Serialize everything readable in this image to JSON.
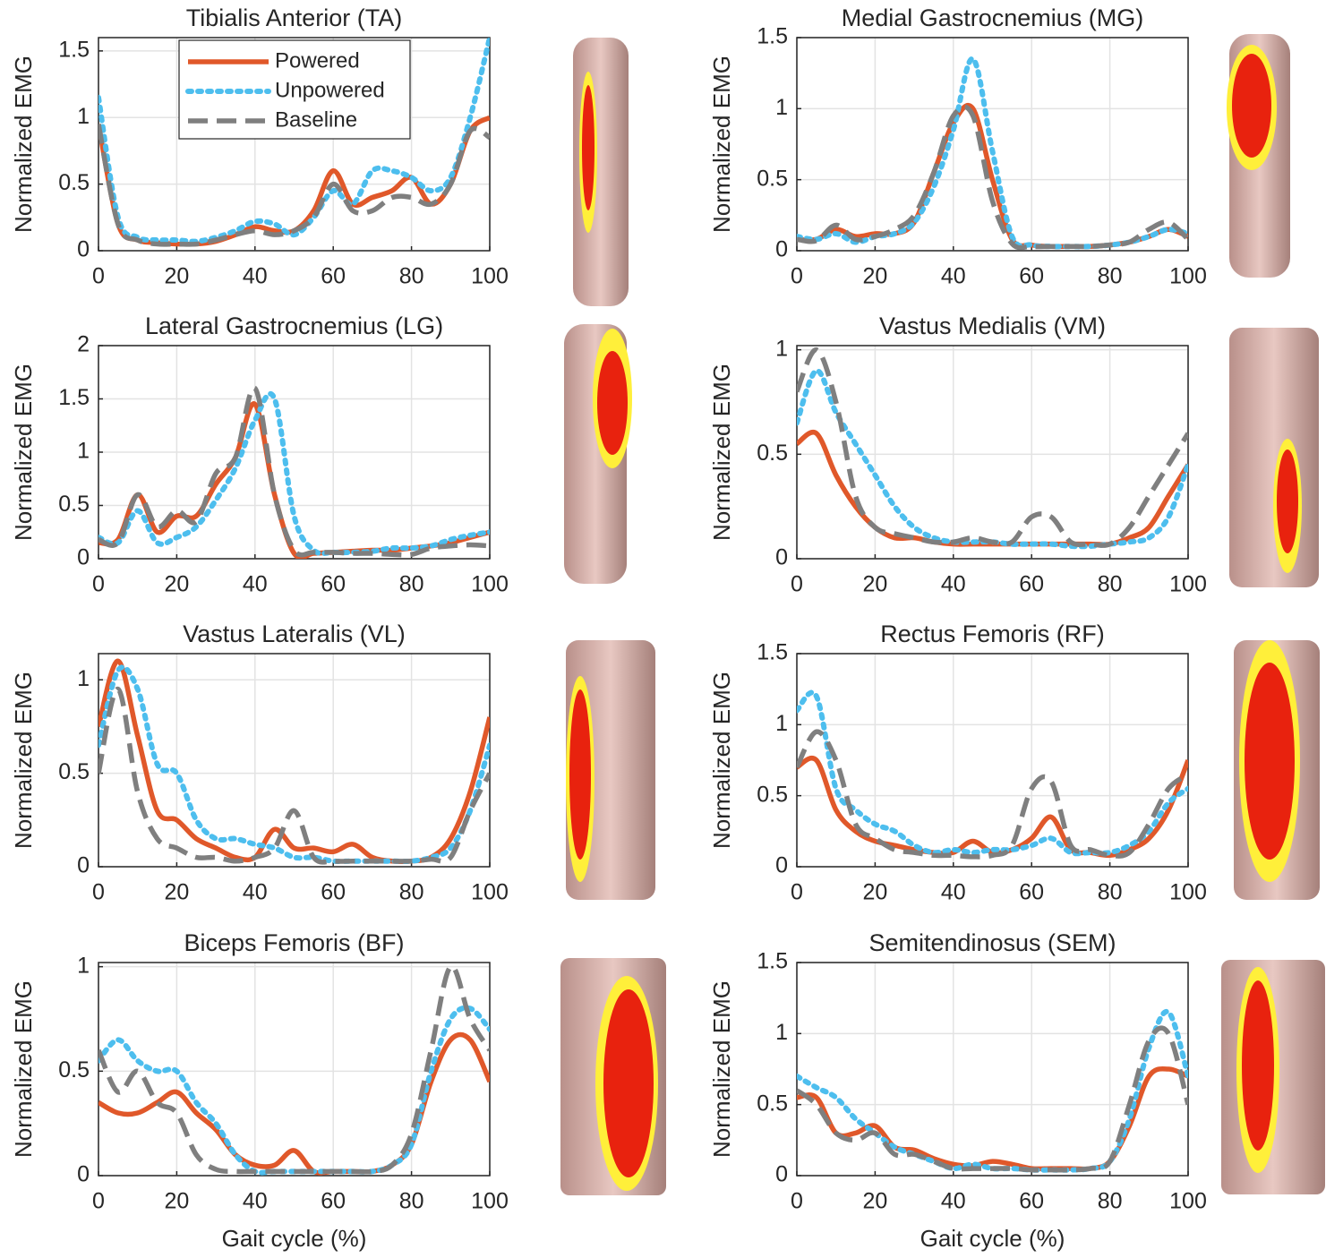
{
  "chart_data": [
    {
      "type": "line",
      "title": "Tibialis Anterior (TA)",
      "ylabel": "Normalized EMG",
      "legend": "upper left",
      "grid": true,
      "x": [
        0,
        5,
        10,
        15,
        20,
        25,
        30,
        35,
        40,
        45,
        50,
        55,
        60,
        65,
        70,
        75,
        80,
        85,
        90,
        95,
        100
      ],
      "xlim": [
        0,
        100
      ],
      "xticks": [
        0,
        20,
        40,
        60,
        80,
        100
      ],
      "ylim": [
        0,
        1.6
      ],
      "yticks": [
        0,
        0.5,
        1,
        1.5
      ],
      "series": [
        {
          "name": "Powered",
          "color": "#e0582a",
          "style": "solid",
          "values": [
            0.95,
            0.2,
            0.08,
            0.06,
            0.05,
            0.05,
            0.07,
            0.12,
            0.18,
            0.15,
            0.15,
            0.3,
            0.6,
            0.35,
            0.4,
            0.45,
            0.55,
            0.35,
            0.5,
            0.9,
            1.0
          ]
        },
        {
          "name": "Unpowered",
          "color": "#4dbeee",
          "style": "dotted",
          "values": [
            1.15,
            0.25,
            0.1,
            0.08,
            0.08,
            0.07,
            0.1,
            0.15,
            0.22,
            0.2,
            0.12,
            0.25,
            0.45,
            0.35,
            0.6,
            0.6,
            0.55,
            0.45,
            0.55,
            1.0,
            1.6
          ]
        },
        {
          "name": "Baseline",
          "color": "#7f7f7f",
          "style": "dashed",
          "values": [
            0.95,
            0.2,
            0.08,
            0.05,
            0.05,
            0.05,
            0.08,
            0.12,
            0.15,
            0.12,
            0.15,
            0.25,
            0.5,
            0.3,
            0.3,
            0.4,
            0.4,
            0.35,
            0.5,
            0.9,
            0.85
          ]
        }
      ]
    },
    {
      "type": "line",
      "title": "Medial Gastrocnemius (MG)",
      "ylabel": "Normalized EMG",
      "grid": true,
      "x": [
        0,
        5,
        10,
        15,
        20,
        25,
        30,
        35,
        40,
        45,
        50,
        55,
        60,
        65,
        70,
        75,
        80,
        85,
        90,
        95,
        100
      ],
      "xlim": [
        0,
        100
      ],
      "xticks": [
        0,
        20,
        40,
        60,
        80,
        100
      ],
      "ylim": [
        0,
        1.5
      ],
      "yticks": [
        0,
        0.5,
        1,
        1.5
      ],
      "series": [
        {
          "color": "#e0582a",
          "style": "solid",
          "values": [
            0.08,
            0.08,
            0.15,
            0.1,
            0.12,
            0.12,
            0.2,
            0.55,
            0.9,
            1.0,
            0.5,
            0.08,
            0.04,
            0.03,
            0.03,
            0.03,
            0.04,
            0.06,
            0.1,
            0.15,
            0.1
          ]
        },
        {
          "color": "#4dbeee",
          "style": "dotted",
          "values": [
            0.1,
            0.08,
            0.12,
            0.06,
            0.1,
            0.12,
            0.2,
            0.45,
            0.85,
            1.35,
            0.7,
            0.1,
            0.04,
            0.03,
            0.03,
            0.03,
            0.04,
            0.06,
            0.1,
            0.15,
            0.12
          ]
        },
        {
          "color": "#7f7f7f",
          "style": "dashed",
          "values": [
            0.08,
            0.07,
            0.18,
            0.08,
            0.1,
            0.15,
            0.25,
            0.55,
            0.95,
            0.95,
            0.35,
            0.05,
            0.03,
            0.03,
            0.03,
            0.03,
            0.04,
            0.06,
            0.15,
            0.2,
            0.08
          ]
        }
      ]
    },
    {
      "type": "line",
      "title": "Lateral Gastrocnemius (LG)",
      "ylabel": "Normalized EMG",
      "grid": true,
      "x": [
        0,
        5,
        10,
        15,
        20,
        25,
        30,
        35,
        40,
        45,
        50,
        55,
        60,
        65,
        70,
        75,
        80,
        85,
        90,
        95,
        100
      ],
      "xlim": [
        0,
        100
      ],
      "xticks": [
        0,
        20,
        40,
        60,
        80,
        100
      ],
      "ylim": [
        0,
        2
      ],
      "yticks": [
        0,
        0.5,
        1,
        1.5,
        2
      ],
      "series": [
        {
          "color": "#e0582a",
          "style": "solid",
          "values": [
            0.15,
            0.18,
            0.6,
            0.25,
            0.4,
            0.4,
            0.7,
            0.95,
            1.45,
            0.6,
            0.05,
            0.05,
            0.06,
            0.07,
            0.08,
            0.08,
            0.1,
            0.12,
            0.15,
            0.2,
            0.25
          ]
        },
        {
          "color": "#4dbeee",
          "style": "dotted",
          "values": [
            0.2,
            0.15,
            0.45,
            0.15,
            0.2,
            0.3,
            0.55,
            0.85,
            1.3,
            1.5,
            0.4,
            0.08,
            0.06,
            0.06,
            0.07,
            0.1,
            0.1,
            0.12,
            0.18,
            0.22,
            0.25
          ]
        },
        {
          "color": "#7f7f7f",
          "style": "dashed",
          "values": [
            0.18,
            0.15,
            0.6,
            0.3,
            0.45,
            0.35,
            0.8,
            0.95,
            1.6,
            0.6,
            0.08,
            0.06,
            0.06,
            0.05,
            0.05,
            0.04,
            0.04,
            0.1,
            0.12,
            0.13,
            0.12
          ]
        }
      ]
    },
    {
      "type": "line",
      "title": "Vastus Medialis (VM)",
      "ylabel": "Normalized EMG",
      "grid": true,
      "x": [
        0,
        5,
        10,
        15,
        20,
        25,
        30,
        35,
        40,
        45,
        50,
        55,
        60,
        65,
        70,
        75,
        80,
        85,
        90,
        95,
        100
      ],
      "xlim": [
        0,
        100
      ],
      "xticks": [
        0,
        20,
        40,
        60,
        80,
        100
      ],
      "ylim": [
        0,
        1.02
      ],
      "yticks": [
        0,
        0.5,
        1
      ],
      "series": [
        {
          "color": "#e0582a",
          "style": "solid",
          "values": [
            0.55,
            0.6,
            0.4,
            0.25,
            0.15,
            0.1,
            0.1,
            0.08,
            0.07,
            0.07,
            0.07,
            0.07,
            0.07,
            0.07,
            0.07,
            0.07,
            0.07,
            0.1,
            0.15,
            0.3,
            0.45
          ]
        },
        {
          "color": "#4dbeee",
          "style": "dotted",
          "values": [
            0.65,
            0.9,
            0.7,
            0.55,
            0.4,
            0.25,
            0.15,
            0.1,
            0.08,
            0.08,
            0.08,
            0.07,
            0.07,
            0.07,
            0.06,
            0.06,
            0.07,
            0.08,
            0.1,
            0.2,
            0.45
          ]
        },
        {
          "color": "#7f7f7f",
          "style": "dashed",
          "values": [
            0.8,
            1.0,
            0.75,
            0.3,
            0.15,
            0.12,
            0.1,
            0.08,
            0.08,
            0.1,
            0.08,
            0.08,
            0.2,
            0.2,
            0.08,
            0.07,
            0.07,
            0.15,
            0.3,
            0.45,
            0.6
          ]
        }
      ]
    },
    {
      "type": "line",
      "title": "Vastus Lateralis (VL)",
      "ylabel": "Normalized EMG",
      "grid": true,
      "x": [
        0,
        5,
        10,
        15,
        20,
        25,
        30,
        35,
        40,
        45,
        50,
        55,
        60,
        65,
        70,
        75,
        80,
        85,
        90,
        95,
        100
      ],
      "xlim": [
        0,
        100
      ],
      "xticks": [
        0,
        20,
        40,
        60,
        80,
        100
      ],
      "ylim": [
        0,
        1.14
      ],
      "yticks": [
        0,
        0.5,
        1
      ],
      "series": [
        {
          "color": "#e0582a",
          "style": "solid",
          "values": [
            0.75,
            1.1,
            0.7,
            0.3,
            0.25,
            0.15,
            0.1,
            0.05,
            0.05,
            0.2,
            0.1,
            0.1,
            0.08,
            0.12,
            0.05,
            0.03,
            0.03,
            0.05,
            0.15,
            0.4,
            0.8
          ]
        },
        {
          "color": "#4dbeee",
          "style": "dotted",
          "values": [
            0.65,
            1.05,
            0.95,
            0.55,
            0.5,
            0.25,
            0.15,
            0.15,
            0.12,
            0.1,
            0.05,
            0.05,
            0.03,
            0.03,
            0.03,
            0.03,
            0.03,
            0.05,
            0.1,
            0.3,
            0.65
          ]
        },
        {
          "color": "#7f7f7f",
          "style": "dashed",
          "values": [
            0.5,
            0.95,
            0.4,
            0.15,
            0.1,
            0.05,
            0.05,
            0.03,
            0.05,
            0.1,
            0.3,
            0.05,
            0.03,
            0.03,
            0.03,
            0.03,
            0.03,
            0.04,
            0.05,
            0.3,
            0.5
          ]
        }
      ]
    },
    {
      "type": "line",
      "title": "Rectus Femoris (RF)",
      "ylabel": "Normalized EMG",
      "grid": true,
      "x": [
        0,
        5,
        10,
        15,
        20,
        25,
        30,
        35,
        40,
        45,
        50,
        55,
        60,
        65,
        70,
        75,
        80,
        85,
        90,
        95,
        100
      ],
      "xlim": [
        0,
        100
      ],
      "xticks": [
        0,
        20,
        40,
        60,
        80,
        100
      ],
      "ylim": [
        0,
        1.5
      ],
      "yticks": [
        0,
        0.5,
        1,
        1.5
      ],
      "series": [
        {
          "color": "#e0582a",
          "style": "solid",
          "values": [
            0.7,
            0.75,
            0.4,
            0.25,
            0.18,
            0.15,
            0.12,
            0.1,
            0.1,
            0.18,
            0.1,
            0.12,
            0.2,
            0.35,
            0.12,
            0.1,
            0.08,
            0.12,
            0.2,
            0.4,
            0.75
          ]
        },
        {
          "color": "#4dbeee",
          "style": "dotted",
          "values": [
            1.1,
            1.2,
            0.55,
            0.4,
            0.3,
            0.25,
            0.15,
            0.1,
            0.12,
            0.1,
            0.12,
            0.12,
            0.15,
            0.2,
            0.1,
            0.1,
            0.1,
            0.15,
            0.25,
            0.45,
            0.55
          ]
        },
        {
          "color": "#7f7f7f",
          "style": "dashed",
          "values": [
            0.7,
            0.95,
            0.75,
            0.3,
            0.2,
            0.12,
            0.1,
            0.08,
            0.08,
            0.07,
            0.08,
            0.15,
            0.55,
            0.6,
            0.15,
            0.12,
            0.08,
            0.1,
            0.3,
            0.55,
            0.65
          ]
        }
      ]
    },
    {
      "type": "line",
      "title": "Biceps Femoris (BF)",
      "ylabel": "Normalized EMG",
      "xlabel": "Gait cycle (%)",
      "grid": true,
      "x": [
        0,
        5,
        10,
        15,
        20,
        25,
        30,
        35,
        40,
        45,
        50,
        55,
        60,
        65,
        70,
        75,
        80,
        85,
        90,
        95,
        100
      ],
      "xlim": [
        0,
        100
      ],
      "xticks": [
        0,
        20,
        40,
        60,
        80,
        100
      ],
      "ylim": [
        0,
        1.02
      ],
      "yticks": [
        0,
        0.5,
        1
      ],
      "series": [
        {
          "color": "#e0582a",
          "style": "solid",
          "values": [
            0.35,
            0.3,
            0.3,
            0.35,
            0.4,
            0.3,
            0.22,
            0.1,
            0.05,
            0.05,
            0.12,
            0.02,
            0.02,
            0.02,
            0.02,
            0.05,
            0.15,
            0.45,
            0.65,
            0.65,
            0.45
          ]
        },
        {
          "color": "#4dbeee",
          "style": "dotted",
          "values": [
            0.55,
            0.65,
            0.55,
            0.5,
            0.5,
            0.35,
            0.25,
            0.1,
            0.02,
            0.02,
            0.02,
            0.02,
            0.02,
            0.02,
            0.02,
            0.05,
            0.15,
            0.5,
            0.75,
            0.8,
            0.7
          ]
        },
        {
          "color": "#7f7f7f",
          "style": "dashed",
          "values": [
            0.6,
            0.4,
            0.5,
            0.35,
            0.3,
            0.1,
            0.03,
            0.02,
            0.02,
            0.02,
            0.02,
            0.02,
            0.02,
            0.02,
            0.02,
            0.05,
            0.2,
            0.6,
            1.0,
            0.75,
            0.6
          ]
        }
      ]
    },
    {
      "type": "line",
      "title": "Semitendinosus (SEM)",
      "ylabel": "Normalized EMG",
      "xlabel": "Gait cycle (%)",
      "grid": true,
      "x": [
        0,
        5,
        10,
        15,
        20,
        25,
        30,
        35,
        40,
        45,
        50,
        55,
        60,
        65,
        70,
        75,
        80,
        85,
        90,
        95,
        100
      ],
      "xlim": [
        0,
        100
      ],
      "xticks": [
        0,
        20,
        40,
        60,
        80,
        100
      ],
      "ylim": [
        0,
        1.5
      ],
      "yticks": [
        0,
        0.5,
        1,
        1.5
      ],
      "series": [
        {
          "color": "#e0582a",
          "style": "solid",
          "values": [
            0.55,
            0.55,
            0.3,
            0.3,
            0.35,
            0.2,
            0.18,
            0.12,
            0.08,
            0.07,
            0.1,
            0.08,
            0.05,
            0.05,
            0.05,
            0.05,
            0.1,
            0.35,
            0.7,
            0.75,
            0.7
          ]
        },
        {
          "color": "#4dbeee",
          "style": "dotted",
          "values": [
            0.7,
            0.62,
            0.55,
            0.4,
            0.3,
            0.2,
            0.15,
            0.1,
            0.05,
            0.08,
            0.05,
            0.05,
            0.04,
            0.04,
            0.04,
            0.05,
            0.1,
            0.4,
            0.9,
            1.15,
            0.7
          ]
        },
        {
          "color": "#7f7f7f",
          "style": "dashed",
          "values": [
            0.6,
            0.5,
            0.3,
            0.25,
            0.3,
            0.15,
            0.15,
            0.1,
            0.05,
            0.05,
            0.05,
            0.05,
            0.04,
            0.04,
            0.04,
            0.05,
            0.1,
            0.5,
            0.95,
            1.0,
            0.5
          ]
        }
      ]
    }
  ]
}
